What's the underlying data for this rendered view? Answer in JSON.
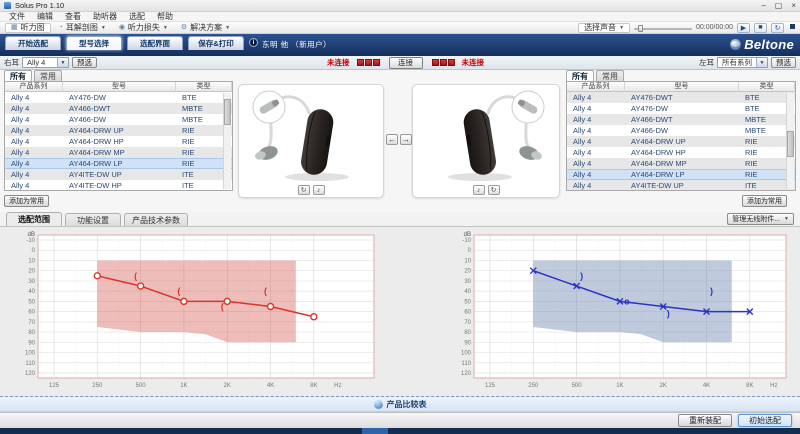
{
  "icons": {
    "minimize": "–",
    "maximize": "▢",
    "close": "×",
    "caret_down": "▼",
    "play": "▶",
    "stop": "■",
    "loop": "↻",
    "arrow_left": "←",
    "arrow_right": "→",
    "rotate": "↻",
    "sound": "♪",
    "info": "i",
    "audiogram": "▦",
    "ear_anatomy": "◔",
    "hearing_loss": "◉",
    "solutions": "⚙"
  },
  "window": {
    "title": "Solus Pro 1.10"
  },
  "menu_bar": {
    "items": [
      "文件",
      "编辑",
      "查看",
      "助听器",
      "选配",
      "帮助"
    ]
  },
  "toolbar": {
    "audiogram_label": "听力图",
    "ear_anatomy_label": "耳解剖图",
    "hearing_loss_label": "听力损失",
    "solutions_label": "解决方案",
    "sound_select_label": "选择声音",
    "time": "00:00/00:00"
  },
  "header": {
    "tabs": [
      "开始选配",
      "型号选择",
      "选配界面",
      "保存&打印"
    ],
    "active_tab": "型号选择",
    "patient": "东明 他 （新用户）",
    "brand": "Beltone"
  },
  "selector_bar": {
    "right_ear_label": "右耳",
    "right_series_value": "Ally 4",
    "left_ear_label": "左耳",
    "left_series_value": "所有系列",
    "preselect_label": "预选",
    "disconnected_label": "未连接",
    "connect_label": "连接"
  },
  "panels": {
    "tab_all": "所有",
    "tab_favorite": "常用",
    "add_favorite_label": "添加为常用",
    "manage_accessories_label": "管理无线附件..."
  },
  "right_ear_panel": {
    "table": {
      "columns": [
        "产品系列",
        "型号",
        "类型"
      ],
      "rows": [
        [
          "Ally 4",
          "AY476-DW",
          "BTE"
        ],
        [
          "Ally 4",
          "AY466-DWT",
          "MBTE"
        ],
        [
          "Ally 4",
          "AY466-DW",
          "MBTE"
        ],
        [
          "Ally 4",
          "AY464-DRW UP",
          "RIE"
        ],
        [
          "Ally 4",
          "AY464-DRW HP",
          "RIE"
        ],
        [
          "Ally 4",
          "AY464-DRW MP",
          "RIE"
        ],
        [
          "Ally 4",
          "AY464-DRW LP",
          "RIE"
        ],
        [
          "Ally 4",
          "AY4ITE-DW UP",
          "ITE"
        ],
        [
          "Ally 4",
          "AY4ITE-DW HP",
          "ITE"
        ]
      ],
      "selected_index": 6
    }
  },
  "left_ear_panel": {
    "table": {
      "columns": [
        "产品系列",
        "型号",
        "类型"
      ],
      "rows": [
        [
          "Ally 4",
          "AY476-DWT",
          "BTE"
        ],
        [
          "Ally 4",
          "AY476-DW",
          "BTE"
        ],
        [
          "Ally 4",
          "AY466-DWT",
          "MBTE"
        ],
        [
          "Ally 4",
          "AY466-DW",
          "MBTE"
        ],
        [
          "Ally 4",
          "AY464-DRW UP",
          "RIE"
        ],
        [
          "Ally 4",
          "AY464-DRW HP",
          "RIE"
        ],
        [
          "Ally 4",
          "AY464-DRW MP",
          "RIE"
        ],
        [
          "Ally 4",
          "AY464-DRW LP",
          "RIE"
        ],
        [
          "Ally 4",
          "AY4ITE-DW UP",
          "ITE"
        ]
      ],
      "selected_index": 7
    }
  },
  "detail_tabs": [
    "选配范围",
    "功能设置",
    "产品技术参数"
  ],
  "active_detail_tab": "选配范围",
  "compare_bar": {
    "label": "产品比较表"
  },
  "footer": {
    "refit_label": "重新装配",
    "initial_fit_label": "初始选配"
  },
  "chart_data": [
    {
      "type": "line",
      "name": "right-ear-fitting-range-audiogram",
      "color": "#d6352b",
      "fill": "rgba(213,90,82,0.40)",
      "border": "#e2a9a9",
      "ylabel": "dB",
      "xlabel": "Hz",
      "ylim": [
        -10,
        120
      ],
      "y_step": 10,
      "x_freqs": [
        125,
        250,
        500,
        1000,
        2000,
        4000,
        8000
      ],
      "x_ticks": [
        "125",
        "250",
        "500",
        "1K",
        "2K",
        "4K",
        "8K"
      ],
      "fitting_range": [
        [
          250,
          10
        ],
        [
          6000,
          10
        ],
        [
          6000,
          90
        ],
        [
          2000,
          90
        ],
        [
          1400,
          82
        ],
        [
          1000,
          80
        ],
        [
          500,
          80
        ],
        [
          250,
          75
        ]
      ],
      "series": [
        {
          "name": "air-conduction-right",
          "symbol": "circle",
          "points": [
            [
              250,
              25
            ],
            [
              500,
              35
            ],
            [
              1000,
              50
            ],
            [
              2000,
              50
            ],
            [
              4000,
              55
            ],
            [
              8000,
              65
            ]
          ]
        }
      ],
      "marks": [
        {
          "symbol": "(",
          "dx": -5,
          "points": [
            [
              500,
              25
            ],
            [
              1000,
              40
            ],
            [
              2000,
              55
            ],
            [
              4000,
              40
            ]
          ]
        }
      ]
    },
    {
      "type": "line",
      "name": "left-ear-fitting-range-audiogram",
      "color": "#2b33c2",
      "fill": "rgba(112,140,180,0.45)",
      "border": "#e2a9a9",
      "ylabel": "dB",
      "xlabel": "Hz",
      "ylim": [
        -10,
        120
      ],
      "y_step": 10,
      "x_freqs": [
        125,
        250,
        500,
        1000,
        2000,
        4000,
        8000
      ],
      "x_ticks": [
        "125",
        "250",
        "500",
        "1K",
        "2K",
        "4K",
        "8K"
      ],
      "fitting_range": [
        [
          250,
          10
        ],
        [
          6000,
          10
        ],
        [
          6000,
          90
        ],
        [
          2000,
          90
        ],
        [
          1400,
          82
        ],
        [
          1000,
          80
        ],
        [
          500,
          80
        ],
        [
          250,
          75
        ]
      ],
      "series": [
        {
          "name": "air-conduction-left",
          "symbol": "x",
          "points": [
            [
              250,
              20
            ],
            [
              500,
              35
            ],
            [
              1000,
              50
            ],
            [
              2000,
              55
            ],
            [
              4000,
              60
            ],
            [
              8000,
              60
            ]
          ]
        }
      ],
      "marks": [
        {
          "symbol": ")",
          "dx": 5,
          "points": [
            [
              500,
              25
            ],
            [
              2000,
              62
            ],
            [
              4000,
              40
            ]
          ]
        },
        {
          "symbol": "o",
          "dx": 7,
          "points": [
            [
              1000,
              50
            ]
          ]
        }
      ]
    }
  ]
}
